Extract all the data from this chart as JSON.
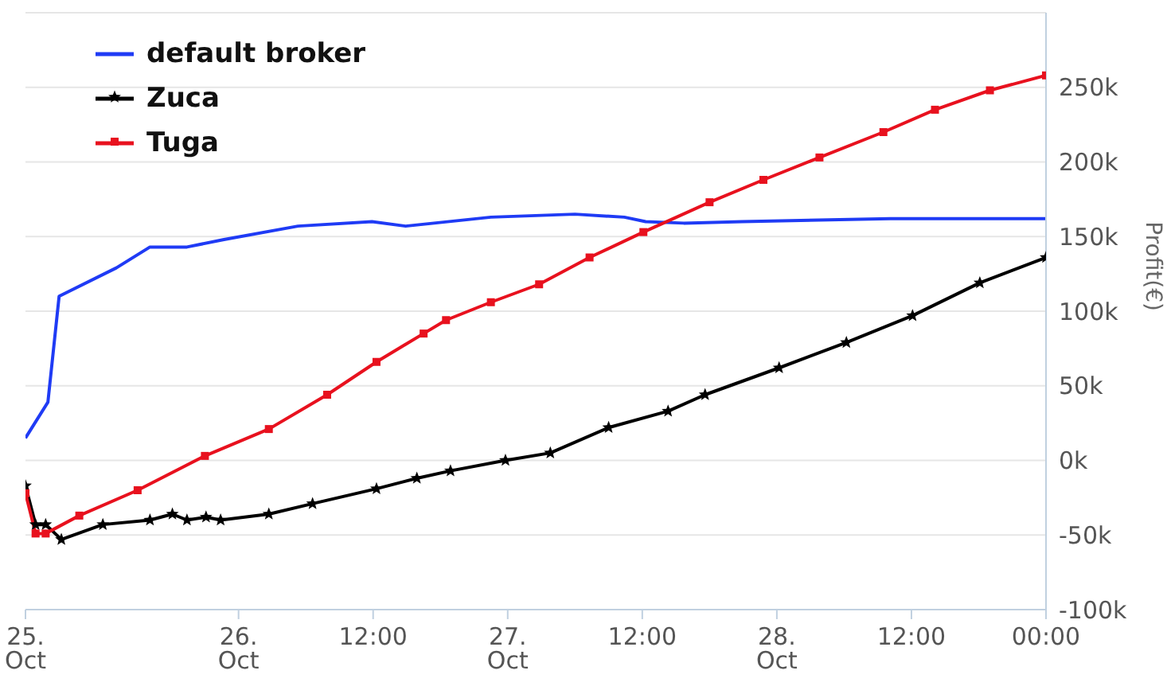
{
  "chart_data": {
    "type": "line",
    "ylabel": "Profit(€)",
    "legend": "top left",
    "grid": "y",
    "xlim": [
      "--10-25T05:00",
      "--10-29T00:00"
    ],
    "xticks": [
      {
        "value": "--10-25T05:00",
        "label": "25. Oct"
      },
      {
        "value": "--10-26T00:00",
        "label": "26. Oct"
      },
      {
        "value": "--10-26T12:00",
        "label": "12:00"
      },
      {
        "value": "--10-27T00:00",
        "label": "27. Oct"
      },
      {
        "value": "--10-27T12:00",
        "label": "12:00"
      },
      {
        "value": "--10-28T00:00",
        "label": "28. Oct"
      },
      {
        "value": "--10-28T12:00",
        "label": "12:00"
      },
      {
        "value": "--10-29T00:00",
        "label": "00:00"
      }
    ],
    "ylim": [
      -100,
      300
    ],
    "yticks": [
      {
        "value": -100,
        "label": "-100k"
      },
      {
        "value": -50,
        "label": "-50k"
      },
      {
        "value": 0,
        "label": "0k"
      },
      {
        "value": 50,
        "label": "50k"
      },
      {
        "value": 100,
        "label": "100k"
      },
      {
        "value": 150,
        "label": "150k"
      },
      {
        "value": 200,
        "label": "200k"
      },
      {
        "value": 250,
        "label": "250k"
      },
      {
        "value": 300,
        "label": null
      }
    ],
    "series": [
      {
        "name": "default broker",
        "color": "#1f3bf5",
        "marker": "none",
        "x": [
          "--10-25T05:00",
          "--10-25T07:00",
          "--10-25T08:00",
          "--10-25T13:06",
          "--10-25T16:06",
          "--10-25T19:24",
          "--10-25T22:42",
          "--10-26T05:18",
          "--10-26T11:54",
          "--10-26T14:54",
          "--10-26T22:30",
          "--10-27T06:00",
          "--10-27T10:24",
          "--10-27T12:18",
          "--10-27T15:42",
          "--10-27T20:54",
          "--10-28T10:06",
          "--10-29T00:00"
        ],
        "values": [
          15,
          39,
          110,
          129,
          143,
          143,
          148,
          157,
          160,
          157,
          163,
          165,
          163,
          160,
          159,
          160,
          162,
          162
        ]
      },
      {
        "name": "Zuca",
        "color": "#000000",
        "marker": "star",
        "x": [
          "--10-25T05:00",
          "--10-25T05:54",
          "--10-25T06:48",
          "--10-25T08:12",
          "--10-25T11:54",
          "--10-25T16:06",
          "--10-25T18:06",
          "--10-25T19:24",
          "--10-25T21:06",
          "--10-25T22:24",
          "--10-26T02:42",
          "--10-26T06:36",
          "--10-26T12:18",
          "--10-26T15:54",
          "--10-26T18:54",
          "--10-26T23:48",
          "--10-27T03:48",
          "--10-27T09:00",
          "--10-27T14:18",
          "--10-27T17:36",
          "--10-28T00:12",
          "--10-28T06:12",
          "--10-28T12:06",
          "--10-28T18:06",
          "--10-29T00:00"
        ],
        "values": [
          -17,
          -43,
          -43,
          -53,
          -43,
          -40,
          -36,
          -40,
          -38,
          -40,
          -36,
          -29,
          -19,
          -12,
          -7,
          0,
          5,
          22,
          33,
          44,
          62,
          79,
          97,
          119,
          136
        ]
      },
      {
        "name": "Tuga",
        "color": "#e8111e",
        "marker": "square",
        "x": [
          "--10-25T05:00",
          "--10-25T05:54",
          "--10-25T06:48",
          "--10-25T09:48",
          "--10-25T15:00",
          "--10-25T21:00",
          "--10-26T02:42",
          "--10-26T07:54",
          "--10-26T12:18",
          "--10-26T16:30",
          "--10-26T18:30",
          "--10-26T22:30",
          "--10-27T02:48",
          "--10-27T07:18",
          "--10-27T12:06",
          "--10-27T18:00",
          "--10-27T22:48",
          "--10-28T03:48",
          "--10-28T09:30",
          "--10-28T14:06",
          "--10-28T19:00",
          "--10-29T00:00"
        ],
        "values": [
          -22,
          -49,
          -49,
          -37,
          -20,
          3,
          21,
          44,
          66,
          85,
          94,
          106,
          118,
          136,
          153,
          173,
          188,
          203,
          220,
          235,
          248,
          258
        ]
      }
    ]
  }
}
